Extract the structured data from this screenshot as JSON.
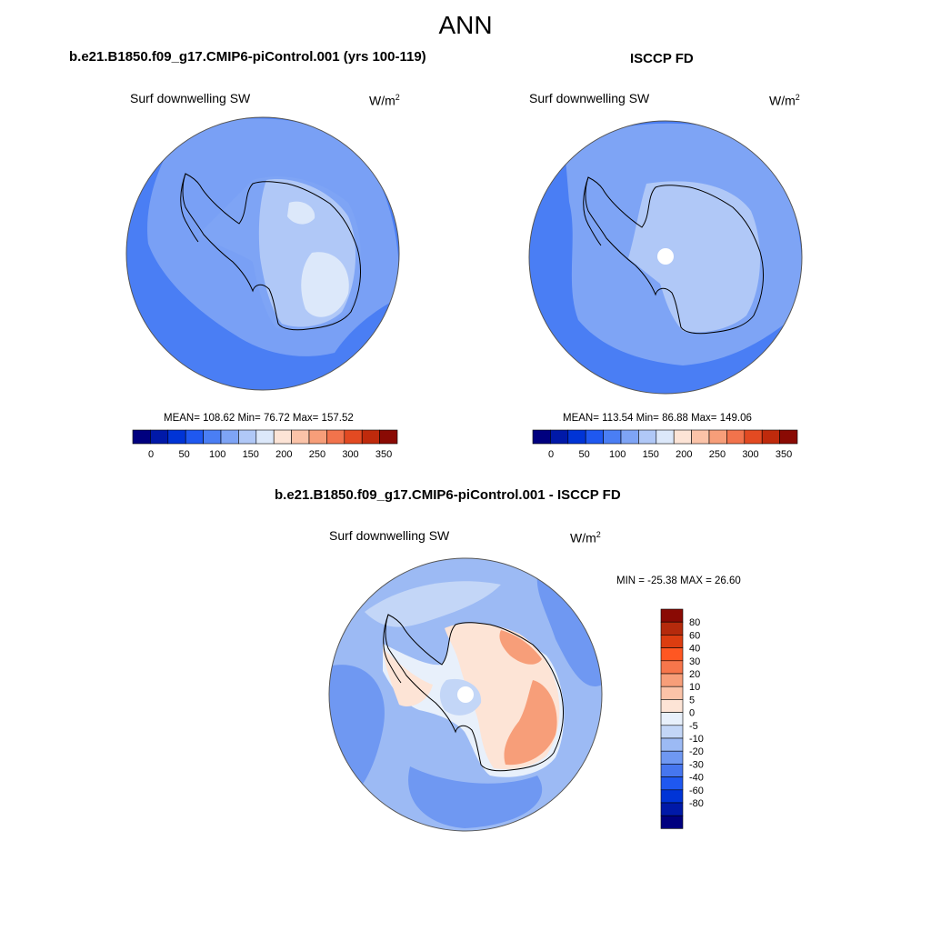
{
  "page": {
    "title": "ANN"
  },
  "panels": [
    {
      "id": "model",
      "title": "b.e21.B1850.f09_g17.CMIP6-piControl.001 (yrs 100-119)",
      "variable": "Surf downwelling SW",
      "units_base": "W/m",
      "units_exp": "2",
      "stats": {
        "text": "MEAN= 108.62  Min=  76.72  Max= 157.52",
        "mean": 108.62,
        "min": 76.72,
        "max": 157.52
      }
    },
    {
      "id": "obs",
      "title": "ISCCP FD",
      "variable": "Surf downwelling SW",
      "units_base": "W/m",
      "units_exp": "2",
      "stats": {
        "text": "MEAN= 113.54  Min=  86.88  Max= 149.06",
        "mean": 113.54,
        "min": 86.88,
        "max": 149.06
      }
    },
    {
      "id": "diff",
      "title": "b.e21.B1850.f09_g17.CMIP6-piControl.001 - ISCCP FD",
      "variable": "Surf downwelling SW",
      "units_base": "W/m",
      "units_exp": "2",
      "stats": {
        "text": "MIN = -25.38 MAX =  26.60",
        "min": -25.38,
        "max": 26.6
      }
    }
  ],
  "colorbars": {
    "absolute": {
      "colors": [
        "#00007f",
        "#0019a8",
        "#0034d6",
        "#1f58f0",
        "#4a7ef4",
        "#7ea4f5",
        "#b0c8f7",
        "#dce8fa",
        "#fde4d6",
        "#fbc3a8",
        "#f79e79",
        "#f2734c",
        "#e34a22",
        "#bf2a0c",
        "#8a0a04"
      ],
      "tick_labels": [
        "0",
        "50",
        "100",
        "150",
        "200",
        "250",
        "300",
        "350"
      ]
    },
    "difference": {
      "colors": [
        "#8a0a04",
        "#b52a0c",
        "#dc3d10",
        "#ff5722",
        "#f7764b",
        "#f79e79",
        "#fbc3a8",
        "#fde4d6",
        "#e8f0fb",
        "#c3d6f7",
        "#9cbaf4",
        "#6f98f2",
        "#4676ef",
        "#1f58f0",
        "#0034d6",
        "#0019a8",
        "#00007f"
      ],
      "tick_labels": [
        "80",
        "60",
        "40",
        "30",
        "20",
        "10",
        "5",
        "0",
        "-5",
        "-10",
        "-20",
        "-30",
        "-40",
        "-60",
        "-80"
      ]
    }
  }
}
